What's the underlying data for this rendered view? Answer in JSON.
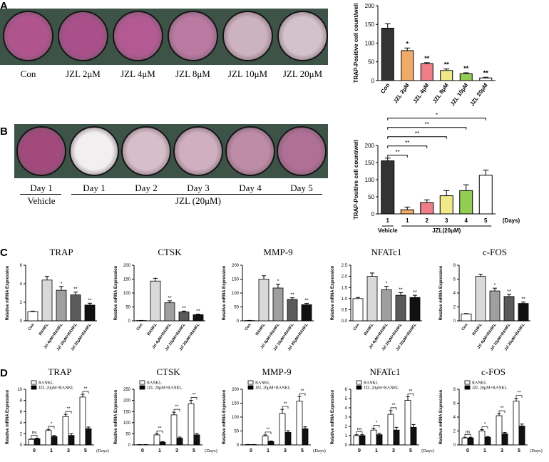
{
  "panel_labels": [
    "A",
    "B",
    "C",
    "D"
  ],
  "panelA": {
    "wells": [
      {
        "label": "Con",
        "color": "#b0548e"
      },
      {
        "label": "JZL 2μM",
        "color": "#a9508a"
      },
      {
        "label": "JZL 4μM",
        "color": "#b35a92"
      },
      {
        "label": "JZL 8μM",
        "color": "#bb7aa2"
      },
      {
        "label": "JZL 10μM",
        "color": "#cdb2bf"
      },
      {
        "label": "JZL 20μM",
        "color": "#d3c2ca"
      }
    ]
  },
  "panelB": {
    "wells": [
      {
        "label": "Day 1",
        "color": "#a24a7c"
      },
      {
        "label": "Day 1",
        "color": "#f2eff0"
      },
      {
        "label": "Day 2",
        "color": "#d7bfca"
      },
      {
        "label": "Day 3",
        "color": "#cfafc0"
      },
      {
        "label": "Day 4",
        "color": "#bf8ca7"
      },
      {
        "label": "Day 5",
        "color": "#b06f95"
      }
    ],
    "group_vehicle": "Vehicle",
    "group_jzl": "JZL (20μM)"
  },
  "chart_data": [
    {
      "id": "A-bar",
      "type": "bar",
      "ylabel": "TRAP-Positive cell count/well",
      "ylim": [
        0,
        200
      ],
      "yticks": [
        "0",
        "50",
        "100",
        "150",
        "200"
      ],
      "categories": [
        "Con",
        "JZL 2μM",
        "JZL 4μM",
        "JZL 8μM",
        "JZL 10μM",
        "JZL 20μM"
      ],
      "values": [
        140,
        80,
        45,
        27,
        18,
        7
      ],
      "errors": [
        12,
        7,
        3,
        4,
        3,
        2
      ],
      "sig": [
        "",
        "*",
        "**",
        "**",
        "**",
        "**"
      ],
      "colors": [
        "#333333",
        "#f0ab6a",
        "#ef7f86",
        "#f0e98a",
        "#92cd52",
        "#ffffff"
      ]
    },
    {
      "id": "B-bar",
      "type": "bar",
      "ylabel": "TRAP-Positive cell count/well",
      "ylim": [
        0,
        200
      ],
      "yticks": [
        "0",
        "50",
        "100",
        "150",
        "200"
      ],
      "categories": [
        "1",
        "1",
        "2",
        "3",
        "4",
        "5"
      ],
      "values": [
        155,
        12,
        33,
        53,
        68,
        113
      ],
      "errors": [
        8,
        8,
        8,
        15,
        17,
        15
      ],
      "colors": [
        "#333333",
        "#f0ab6a",
        "#ef7f86",
        "#f0e98a",
        "#92cd52",
        "#ffffff"
      ],
      "xunit": "(Days)",
      "group_vehicle": "Vehicle",
      "group_jzl": "JZL(20μM)",
      "brackets": [
        {
          "to": 1,
          "sig": "**"
        },
        {
          "to": 2,
          "sig": "**"
        },
        {
          "to": 3,
          "sig": "**"
        },
        {
          "to": 4,
          "sig": "**"
        },
        {
          "to": 5,
          "sig": "*"
        }
      ]
    },
    {
      "id": "C-TRAP",
      "type": "bar",
      "title": "TRAP",
      "ylabel": "Relative mRNA Expression",
      "ylim": [
        0,
        6
      ],
      "yticks": [
        "0",
        "2",
        "4",
        "6"
      ],
      "categories": [
        "Con",
        "RANKL",
        "Jzl 4μM+RANKL",
        "Jzl 10μM+RANKL",
        "Jzl 20μM+RANKL"
      ],
      "values": [
        1.0,
        4.4,
        3.3,
        2.8,
        1.7
      ],
      "errors": [
        0.05,
        0.4,
        0.4,
        0.3,
        0.2
      ],
      "sig": [
        "",
        "",
        "*",
        "**",
        "**"
      ]
    },
    {
      "id": "C-CTSK",
      "type": "bar",
      "title": "CTSK",
      "ylabel": "Relative mRNA Expression",
      "ylim": [
        0,
        200
      ],
      "yticks": [
        "0",
        "50",
        "100",
        "150",
        "200"
      ],
      "categories": [
        "Con",
        "RANKL",
        "Jzl 4μM+RANKL",
        "Jzl 10μM+RANKL",
        "Jzl 20μM+RANKL"
      ],
      "values": [
        1,
        143,
        65,
        32,
        22
      ],
      "errors": [
        0.5,
        10,
        7,
        3,
        2
      ],
      "sig": [
        "",
        "",
        "**",
        "**",
        "**"
      ]
    },
    {
      "id": "C-MMP9",
      "type": "bar",
      "title": "MMP-9",
      "ylabel": "Relative mRNA Expression",
      "ylim": [
        0,
        200
      ],
      "yticks": [
        "0",
        "50",
        "100",
        "150",
        "200"
      ],
      "categories": [
        "Con",
        "RANKL",
        "Jzl 4μM+RANKL",
        "Jzl 10μM+RANKL",
        "Jzl 20μM+RANKL"
      ],
      "values": [
        1,
        150,
        118,
        77,
        58
      ],
      "errors": [
        0.5,
        12,
        14,
        6,
        5
      ],
      "sig": [
        "",
        "",
        "*",
        "**",
        "**"
      ]
    },
    {
      "id": "C-NFATc1",
      "type": "bar",
      "title": "NFATc1",
      "ylabel": "Relative mRNA Expression",
      "ylim": [
        0,
        2.5
      ],
      "yticks": [
        "0.0",
        "0.5",
        "1.0",
        "1.5",
        "2.0",
        "2.5"
      ],
      "categories": [
        "Con",
        "RANKL",
        "Jzl 4μM+RANKL",
        "Jzl 10μM+RANKL",
        "Jzl 20μM+RANKL"
      ],
      "values": [
        1.0,
        2.0,
        1.4,
        1.15,
        1.05
      ],
      "errors": [
        0.05,
        0.15,
        0.15,
        0.12,
        0.1
      ],
      "sig": [
        "",
        "",
        "*",
        "**",
        "**"
      ]
    },
    {
      "id": "C-cFOS",
      "type": "bar",
      "title": "c-FOS",
      "ylabel": "Relative mRNA Expression",
      "ylim": [
        0,
        8
      ],
      "yticks": [
        "0",
        "2",
        "4",
        "6",
        "8"
      ],
      "categories": [
        "Con",
        "RANKL",
        "Jzl 4μM+RANKL",
        "Jzl 10μM+RANKL",
        "Jzl 20μM+RANKL"
      ],
      "values": [
        1.0,
        6.4,
        4.3,
        3.5,
        2.5
      ],
      "errors": [
        0.05,
        0.3,
        0.4,
        0.3,
        0.2
      ],
      "sig": [
        "",
        "",
        "*",
        "**",
        "**"
      ]
    },
    {
      "id": "D-TRAP",
      "type": "bar",
      "title": "TRAP",
      "ylabel": "Relative mRNA Expression",
      "ylim": [
        0,
        10
      ],
      "yticks": [
        "0",
        "2",
        "4",
        "6",
        "8",
        "10"
      ],
      "categories": [
        "0",
        "1",
        "3",
        "5"
      ],
      "xunit": "(Days)",
      "series": [
        {
          "name": "RANKL",
          "values": [
            1.0,
            2.6,
            5.1,
            8.6
          ],
          "errors": [
            0.1,
            0.2,
            0.4,
            0.5
          ]
        },
        {
          "name": "JZL 20μM+RANKL",
          "values": [
            1.1,
            1.5,
            1.7,
            2.9
          ],
          "errors": [
            0.1,
            0.2,
            0.3,
            0.3
          ]
        }
      ],
      "sig": [
        "ns",
        "*",
        "**",
        "**"
      ]
    },
    {
      "id": "D-CTSK",
      "type": "bar",
      "title": "CTSK",
      "ylabel": "Relative mRNA Expression",
      "ylim": [
        0,
        250
      ],
      "yticks": [
        "0",
        "50",
        "100",
        "150",
        "200",
        "250"
      ],
      "categories": [
        "0",
        "1",
        "3",
        "5"
      ],
      "xunit": "(Days)",
      "series": [
        {
          "name": "RANKL",
          "values": [
            1,
            45,
            135,
            185
          ],
          "errors": [
            0.5,
            5,
            12,
            15
          ]
        },
        {
          "name": "JZL 20μM+RANKL",
          "values": [
            1,
            12,
            30,
            45
          ],
          "errors": [
            0.5,
            3,
            5,
            6
          ]
        }
      ],
      "sig": [
        "",
        "**",
        "**",
        "**"
      ]
    },
    {
      "id": "D-MMP9",
      "type": "bar",
      "title": "MMP-9",
      "ylabel": "Relative mRNA Expression",
      "ylim": [
        0,
        200
      ],
      "yticks": [
        "0",
        "50",
        "100",
        "150",
        "200"
      ],
      "categories": [
        "0",
        "1",
        "3",
        "5"
      ],
      "xunit": "(Days)",
      "series": [
        {
          "name": "RANKL",
          "values": [
            1,
            32,
            113,
            157
          ],
          "errors": [
            0.5,
            4,
            15,
            17
          ]
        },
        {
          "name": "JZL 20μM+RANKL",
          "values": [
            1,
            12,
            45,
            58
          ],
          "errors": [
            0.5,
            2,
            6,
            7
          ]
        }
      ],
      "sig": [
        "",
        "**",
        "**",
        "**"
      ]
    },
    {
      "id": "D-NFATc1",
      "type": "bar",
      "title": "NFATc1",
      "ylabel": "Relative mRNA Expression",
      "ylim": [
        0,
        6
      ],
      "yticks": [
        "0",
        "1",
        "2",
        "3",
        "4",
        "5",
        "6"
      ],
      "categories": [
        "0",
        "1",
        "3",
        "5"
      ],
      "xunit": "(Days)",
      "series": [
        {
          "name": "RANKL",
          "values": [
            1.0,
            1.6,
            3.3,
            4.8
          ],
          "errors": [
            0.1,
            0.2,
            0.4,
            0.4
          ]
        },
        {
          "name": "JZL 20μM+RANKL",
          "values": [
            1.0,
            1.1,
            1.6,
            1.9
          ],
          "errors": [
            0.1,
            0.15,
            0.3,
            0.3
          ]
        }
      ],
      "sig": [
        "ns",
        "*",
        "**",
        "**"
      ]
    },
    {
      "id": "D-cFOS",
      "type": "bar",
      "title": "c-FOS",
      "ylabel": "Relative mRNA Expression",
      "ylim": [
        0,
        8
      ],
      "yticks": [
        "0",
        "2",
        "4",
        "6",
        "8"
      ],
      "categories": [
        "0",
        "1",
        "3",
        "5"
      ],
      "xunit": "(Days)",
      "series": [
        {
          "name": "RANKL",
          "values": [
            1.0,
            2.0,
            4.2,
            6.3
          ],
          "errors": [
            0.1,
            0.2,
            0.3,
            0.4
          ]
        },
        {
          "name": "JZL 20μM+RANKL",
          "values": [
            1.0,
            1.1,
            1.6,
            2.7
          ],
          "errors": [
            0.1,
            0.1,
            0.2,
            0.3
          ]
        }
      ],
      "sig": [
        "ns",
        "*",
        "**",
        "**"
      ]
    }
  ]
}
